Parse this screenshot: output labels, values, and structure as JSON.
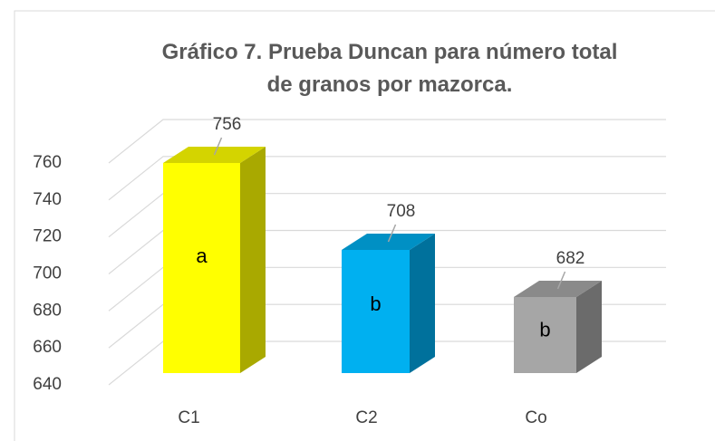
{
  "chart_data": {
    "type": "bar3d",
    "title": "Gráfico 7. Prueba Duncan para número total de granos por mazorca.",
    "categories": [
      "C1",
      "C2",
      "Co"
    ],
    "values": [
      756,
      708,
      682
    ],
    "colors": [
      "#ffff00",
      "#00b0f0",
      "#a6a6a6"
    ],
    "side_colors": [
      "#a9a900",
      "#00719c",
      "#6b6b6b"
    ],
    "top_colors": [
      "#d4d400",
      "#0090c4",
      "#8a8a8a"
    ],
    "bar_labels": [
      "a",
      "b",
      "b"
    ],
    "ylim": [
      640,
      760
    ],
    "yticks": [
      640,
      660,
      680,
      700,
      720,
      740,
      760
    ],
    "grid": true
  }
}
